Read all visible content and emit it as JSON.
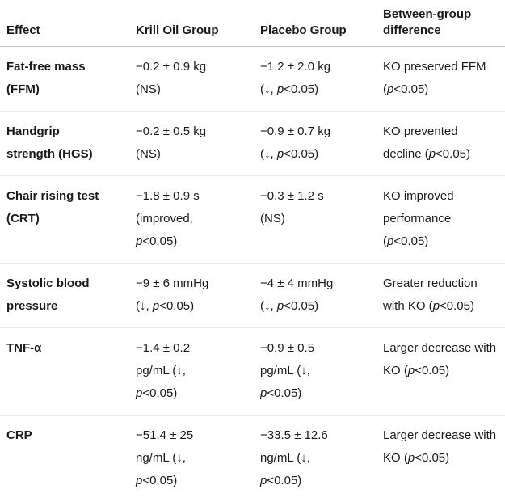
{
  "table": {
    "columns": [
      {
        "label": "Effect"
      },
      {
        "label": "Krill Oil Group"
      },
      {
        "label": "Placebo Group"
      },
      {
        "label": "Between-group difference"
      }
    ],
    "rows": [
      {
        "effect": "Fat-free mass (FFM)",
        "krill": "−0.2 ± 0.9 kg (NS)",
        "placebo": "−1.2 ± 2.0 kg (↓, *p*<0.05)",
        "difference": "KO preserved FFM (*p*<0.05)"
      },
      {
        "effect": "Handgrip strength (HGS)",
        "krill": "−0.2 ± 0.5 kg (NS)",
        "placebo": "−0.9 ± 0.7 kg (↓, *p*<0.05)",
        "difference": "KO prevented decline (*p*<0.05)"
      },
      {
        "effect": "Chair rising test (CRT)",
        "krill": "−1.8 ± 0.9 s (improved, *p*<0.05)",
        "placebo": "−0.3 ± 1.2 s (NS)",
        "difference": "KO improved performance (*p*<0.05)"
      },
      {
        "effect": "Systolic blood pressure",
        "krill": "−9 ± 6 mmHg (↓, *p*<0.05)",
        "placebo": "−4 ± 4 mmHg (↓, *p*<0.05)",
        "difference": "Greater reduction with KO (*p*<0.05)"
      },
      {
        "effect": "TNF-α",
        "krill": "−1.4 ± 0.2 pg/mL (↓, *p*<0.05)",
        "placebo": "−0.9 ± 0.5 pg/mL (↓, *p*<0.05)",
        "difference": "Larger decrease with KO (*p*<0.05)"
      },
      {
        "effect": "CRP",
        "krill": "−51.4 ± 25 ng/mL (↓, *p*<0.05)",
        "placebo": "−33.5 ± 12.6 ng/mL (↓, *p*<0.05)",
        "difference": "Larger decrease with KO (*p*<0.05)"
      }
    ],
    "colors": {
      "background": "#ffffff",
      "text": "#1a1a1a",
      "header_border": "#c8c8c8",
      "row_border": "#ebebeb"
    }
  }
}
